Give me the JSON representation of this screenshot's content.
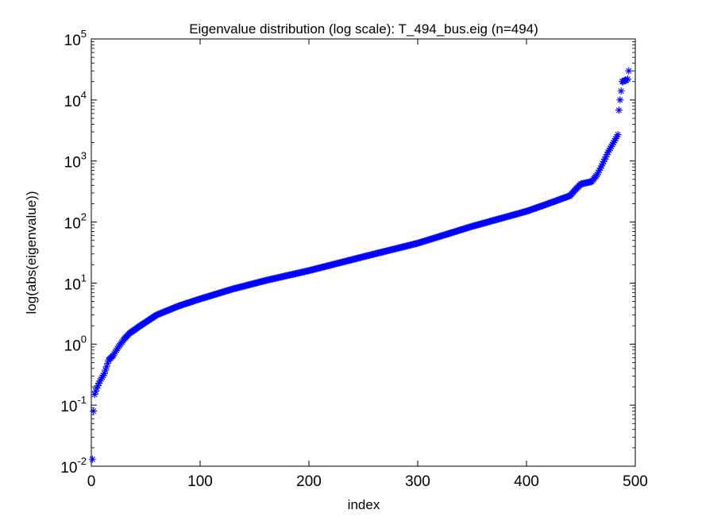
{
  "chart_data": {
    "type": "scatter",
    "title": "Eigenvalue distribution (log scale): T_494_bus.eig (n=494)",
    "xlabel": "index",
    "ylabel": "log(abs(eigenvalue))",
    "xlim": [
      0,
      500
    ],
    "ylim": [
      0.01,
      100000
    ],
    "y_scale": "log",
    "grid": false,
    "legend": "none",
    "marker": "asterisk",
    "marker_color": "#0000ff",
    "x_ticks": [
      "0",
      "100",
      "200",
      "300",
      "400",
      "500"
    ],
    "y_ticks": [
      {
        "base": "10",
        "exp": "-2"
      },
      {
        "base": "10",
        "exp": "-1"
      },
      {
        "base": "10",
        "exp": "0"
      },
      {
        "base": "10",
        "exp": "1"
      },
      {
        "base": "10",
        "exp": "2"
      },
      {
        "base": "10",
        "exp": "3"
      },
      {
        "base": "10",
        "exp": "4"
      },
      {
        "base": "10",
        "exp": "5"
      }
    ],
    "n_points": 494,
    "profile_x": [
      1,
      2,
      3,
      5,
      8,
      12,
      16,
      20,
      25,
      30,
      35,
      45,
      60,
      80,
      100,
      130,
      160,
      200,
      250,
      300,
      350,
      400,
      420,
      440,
      445,
      450,
      460,
      465,
      470,
      475,
      480,
      484
    ],
    "profile_y": [
      0.013,
      0.08,
      0.15,
      0.19,
      0.25,
      0.33,
      0.55,
      0.65,
      0.9,
      1.2,
      1.5,
      2.0,
      3.0,
      4.2,
      5.5,
      8.0,
      11,
      16,
      27,
      45,
      85,
      150,
      200,
      270,
      340,
      420,
      460,
      600,
      900,
      1400,
      2000,
      2700
    ],
    "top_eigenvalues": [
      6800,
      10000,
      14000,
      20000,
      20000,
      21000,
      21000,
      21000,
      22000,
      30000
    ]
  }
}
